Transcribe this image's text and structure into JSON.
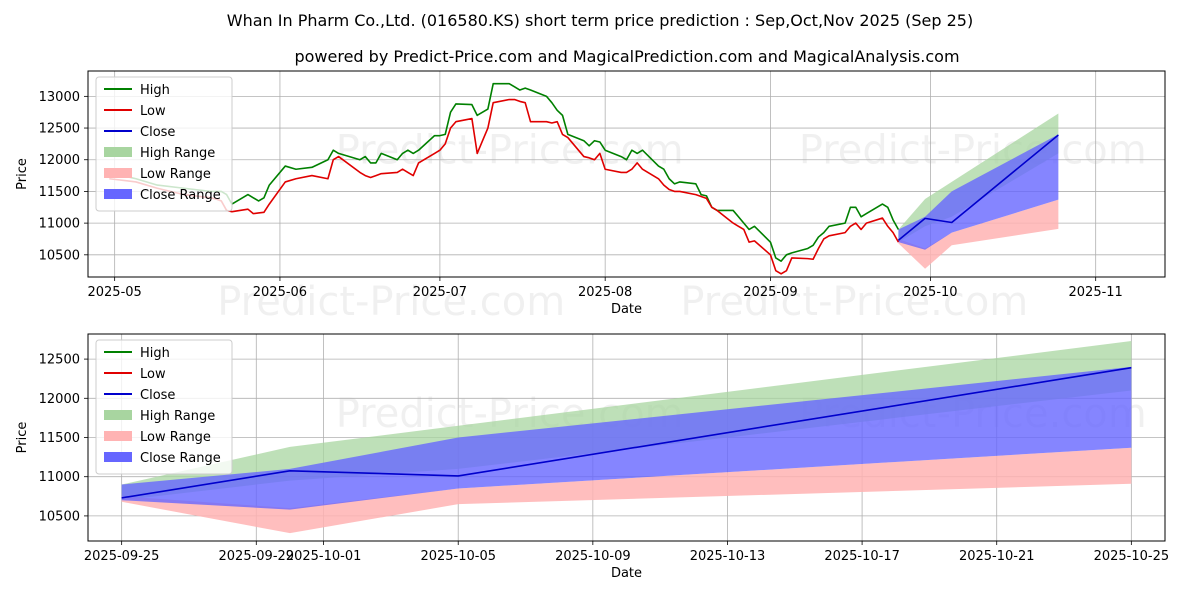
{
  "title": "Whan In Pharm Co.,Ltd. (016580.KS) short term price prediction : Sep,Oct,Nov 2025 (Sep 25)",
  "subtitle": "powered by Predict-Price.com and MagicalPrediction.com and MagicalAnalysis.com",
  "watermark": "Predict-Price.com",
  "colors": {
    "high": "#008000",
    "low": "#e00000",
    "close": "#0000cc",
    "high_range": "#a8d5a0",
    "low_range": "#ffb3b3",
    "close_range": "#6666ff",
    "grid": "#b0b0b0"
  },
  "chart_data": [
    {
      "type": "line",
      "title": "",
      "xlabel": "Date",
      "ylabel": "Price",
      "grid": true,
      "legend_position": "top-left",
      "x_axis_kind": "dates",
      "xlim": [
        "2025-04-26",
        "2025-11-14"
      ],
      "ylim": [
        10150,
        13400
      ],
      "xticks": [
        {
          "date": "2025-05-01",
          "label": "2025-05"
        },
        {
          "date": "2025-06-01",
          "label": "2025-06"
        },
        {
          "date": "2025-07-01",
          "label": "2025-07"
        },
        {
          "date": "2025-08-01",
          "label": "2025-08"
        },
        {
          "date": "2025-09-01",
          "label": "2025-09"
        },
        {
          "date": "2025-10-01",
          "label": "2025-10"
        },
        {
          "date": "2025-11-01",
          "label": "2025-11"
        }
      ],
      "yticks": [
        10500,
        11000,
        11500,
        12000,
        12500,
        13000
      ],
      "legend": [
        "High",
        "Low",
        "Close",
        "High Range",
        "Low Range",
        "Close Range"
      ],
      "series": [
        {
          "name": "High",
          "dates": [
            "2025-04-30",
            "2025-05-05",
            "2025-05-09",
            "2025-05-14",
            "2025-05-19",
            "2025-05-20",
            "2025-05-21",
            "2025-05-22",
            "2025-05-23",
            "2025-05-26",
            "2025-05-27",
            "2025-05-28",
            "2025-05-29",
            "2025-05-30",
            "2025-06-02",
            "2025-06-04",
            "2025-06-07",
            "2025-06-10",
            "2025-06-11",
            "2025-06-12",
            "2025-06-16",
            "2025-06-17",
            "2025-06-18",
            "2025-06-19",
            "2025-06-20",
            "2025-06-23",
            "2025-06-24",
            "2025-06-25",
            "2025-06-26",
            "2025-06-27",
            "2025-06-30",
            "2025-07-01",
            "2025-07-02",
            "2025-07-03",
            "2025-07-04",
            "2025-07-07",
            "2025-07-08",
            "2025-07-09",
            "2025-07-10",
            "2025-07-11",
            "2025-07-14",
            "2025-07-15",
            "2025-07-16",
            "2025-07-17",
            "2025-07-18",
            "2025-07-21",
            "2025-07-22",
            "2025-07-23",
            "2025-07-24",
            "2025-07-25",
            "2025-07-28",
            "2025-07-29",
            "2025-07-30",
            "2025-07-31",
            "2025-08-01",
            "2025-08-04",
            "2025-08-05",
            "2025-08-06",
            "2025-08-07",
            "2025-08-08",
            "2025-08-11",
            "2025-08-12",
            "2025-08-13",
            "2025-08-14",
            "2025-08-15",
            "2025-08-18",
            "2025-08-19",
            "2025-08-20",
            "2025-08-21",
            "2025-08-22",
            "2025-08-25",
            "2025-08-26",
            "2025-08-27",
            "2025-08-28",
            "2025-08-29",
            "2025-09-01",
            "2025-09-02",
            "2025-09-03",
            "2025-09-04",
            "2025-09-05",
            "2025-09-08",
            "2025-09-09",
            "2025-09-10",
            "2025-09-11",
            "2025-09-12",
            "2025-09-15",
            "2025-09-16",
            "2025-09-17",
            "2025-09-18",
            "2025-09-19",
            "2025-09-22",
            "2025-09-23",
            "2025-09-24",
            "2025-09-25"
          ],
          "values": [
            11800,
            11700,
            11600,
            11550,
            11500,
            11500,
            11500,
            11450,
            11300,
            11450,
            11400,
            11350,
            11400,
            11600,
            11900,
            11850,
            11880,
            12000,
            12150,
            12100,
            12000,
            12050,
            11950,
            11950,
            12100,
            12000,
            12100,
            12150,
            12100,
            12150,
            12380,
            12380,
            12400,
            12750,
            12880,
            12870,
            12700,
            12750,
            12800,
            13200,
            13200,
            13150,
            13100,
            13130,
            13100,
            13000,
            12900,
            12780,
            12700,
            12400,
            12300,
            12220,
            12300,
            12280,
            12150,
            12050,
            12000,
            12150,
            12100,
            12150,
            11900,
            11850,
            11700,
            11620,
            11650,
            11620,
            11450,
            11430,
            11250,
            11200,
            11200,
            11100,
            11000,
            10900,
            10950,
            10700,
            10450,
            10400,
            10500,
            10530,
            10600,
            10650,
            10780,
            10850,
            10950,
            11000,
            11250,
            11250,
            11100,
            11150,
            11300,
            11250,
            11050,
            10900
          ]
        },
        {
          "name": "Low",
          "dates": [
            "2025-04-30",
            "2025-05-05",
            "2025-05-09",
            "2025-05-14",
            "2025-05-19",
            "2025-05-20",
            "2025-05-21",
            "2025-05-22",
            "2025-05-23",
            "2025-05-26",
            "2025-05-27",
            "2025-05-28",
            "2025-05-29",
            "2025-05-30",
            "2025-06-02",
            "2025-06-04",
            "2025-06-07",
            "2025-06-10",
            "2025-06-11",
            "2025-06-12",
            "2025-06-16",
            "2025-06-17",
            "2025-06-18",
            "2025-06-19",
            "2025-06-20",
            "2025-06-23",
            "2025-06-24",
            "2025-06-25",
            "2025-06-26",
            "2025-06-27",
            "2025-06-30",
            "2025-07-01",
            "2025-07-02",
            "2025-07-03",
            "2025-07-04",
            "2025-07-07",
            "2025-07-08",
            "2025-07-09",
            "2025-07-10",
            "2025-07-11",
            "2025-07-14",
            "2025-07-15",
            "2025-07-16",
            "2025-07-17",
            "2025-07-18",
            "2025-07-21",
            "2025-07-22",
            "2025-07-23",
            "2025-07-24",
            "2025-07-25",
            "2025-07-28",
            "2025-07-29",
            "2025-07-30",
            "2025-07-31",
            "2025-08-01",
            "2025-08-04",
            "2025-08-05",
            "2025-08-06",
            "2025-08-07",
            "2025-08-08",
            "2025-08-11",
            "2025-08-12",
            "2025-08-13",
            "2025-08-14",
            "2025-08-15",
            "2025-08-18",
            "2025-08-19",
            "2025-08-20",
            "2025-08-21",
            "2025-08-22",
            "2025-08-25",
            "2025-08-26",
            "2025-08-27",
            "2025-08-28",
            "2025-08-29",
            "2025-09-01",
            "2025-09-02",
            "2025-09-03",
            "2025-09-04",
            "2025-09-05",
            "2025-09-08",
            "2025-09-09",
            "2025-09-10",
            "2025-09-11",
            "2025-09-12",
            "2025-09-15",
            "2025-09-16",
            "2025-09-17",
            "2025-09-18",
            "2025-09-19",
            "2025-09-22",
            "2025-09-23",
            "2025-09-24",
            "2025-09-25"
          ],
          "values": [
            11700,
            11650,
            11550,
            11450,
            11400,
            11380,
            11350,
            11200,
            11180,
            11220,
            11150,
            11160,
            11170,
            11300,
            11650,
            11700,
            11750,
            11700,
            12000,
            12050,
            11800,
            11750,
            11720,
            11750,
            11780,
            11800,
            11850,
            11800,
            11750,
            11950,
            12100,
            12150,
            12250,
            12500,
            12600,
            12650,
            12100,
            12300,
            12500,
            12900,
            12950,
            12950,
            12920,
            12900,
            12600,
            12600,
            12580,
            12600,
            12400,
            12350,
            12050,
            12030,
            12000,
            12100,
            11850,
            11800,
            11800,
            11850,
            11950,
            11850,
            11700,
            11600,
            11530,
            11500,
            11500,
            11450,
            11420,
            11390,
            11250,
            11200,
            11000,
            10950,
            10900,
            10700,
            10720,
            10500,
            10250,
            10200,
            10250,
            10450,
            10440,
            10430,
            10600,
            10750,
            10800,
            10850,
            10950,
            11000,
            10900,
            11000,
            11080,
            10950,
            10850,
            10700
          ]
        },
        {
          "name": "Close",
          "dates": [
            "2025-09-25",
            "2025-09-30",
            "2025-10-05",
            "2025-10-25"
          ],
          "values": [
            10730,
            11075,
            11010,
            12390
          ]
        }
      ],
      "ranges": [
        {
          "name": "High Range",
          "dates": [
            "2025-09-25",
            "2025-09-30",
            "2025-10-05",
            "2025-10-25"
          ],
          "upper": [
            10900,
            11380,
            11650,
            12730
          ],
          "lower": [
            10700,
            10950,
            11100,
            12100
          ]
        },
        {
          "name": "Low Range",
          "dates": [
            "2025-09-25",
            "2025-09-30",
            "2025-10-05",
            "2025-10-25"
          ],
          "upper": [
            10750,
            10600,
            10850,
            11370
          ],
          "lower": [
            10680,
            10280,
            10650,
            10910
          ]
        },
        {
          "name": "Close Range",
          "dates": [
            "2025-09-25",
            "2025-09-30",
            "2025-10-05",
            "2025-10-25"
          ],
          "upper": [
            10900,
            11100,
            11500,
            12400
          ],
          "lower": [
            10700,
            10580,
            10850,
            11370
          ]
        }
      ]
    },
    {
      "type": "line",
      "title": "",
      "xlabel": "Date",
      "ylabel": "Price",
      "grid": true,
      "legend_position": "top-left",
      "x_axis_kind": "dates",
      "xlim": [
        "2025-09-24",
        "2025-10-26"
      ],
      "ylim": [
        10180,
        12820
      ],
      "xticks": [
        {
          "date": "2025-09-25",
          "label": "2025-09-25"
        },
        {
          "date": "2025-09-29",
          "label": "2025-09-29"
        },
        {
          "date": "2025-10-01",
          "label": "2025-10-01"
        },
        {
          "date": "2025-10-05",
          "label": "2025-10-05"
        },
        {
          "date": "2025-10-09",
          "label": "2025-10-09"
        },
        {
          "date": "2025-10-13",
          "label": "2025-10-13"
        },
        {
          "date": "2025-10-17",
          "label": "2025-10-17"
        },
        {
          "date": "2025-10-21",
          "label": "2025-10-21"
        },
        {
          "date": "2025-10-25",
          "label": "2025-10-25"
        }
      ],
      "yticks": [
        10500,
        11000,
        11500,
        12000,
        12500
      ],
      "legend": [
        "High",
        "Low",
        "Close",
        "High Range",
        "Low Range",
        "Close Range"
      ],
      "series": [
        {
          "name": "High",
          "dates": [],
          "values": []
        },
        {
          "name": "Low",
          "dates": [],
          "values": []
        },
        {
          "name": "Close",
          "dates": [
            "2025-09-25",
            "2025-09-30",
            "2025-10-05",
            "2025-10-25"
          ],
          "values": [
            10730,
            11075,
            11010,
            12390
          ]
        }
      ],
      "ranges": [
        {
          "name": "High Range",
          "dates": [
            "2025-09-25",
            "2025-09-30",
            "2025-10-05",
            "2025-10-25"
          ],
          "upper": [
            10900,
            11380,
            11650,
            12730
          ],
          "lower": [
            10700,
            10950,
            11100,
            12100
          ]
        },
        {
          "name": "Low Range",
          "dates": [
            "2025-09-25",
            "2025-09-30",
            "2025-10-05",
            "2025-10-25"
          ],
          "upper": [
            10750,
            10600,
            10850,
            11370
          ],
          "lower": [
            10680,
            10280,
            10650,
            10910
          ]
        },
        {
          "name": "Close Range",
          "dates": [
            "2025-09-25",
            "2025-09-30",
            "2025-10-05",
            "2025-10-25"
          ],
          "upper": [
            10900,
            11100,
            11500,
            12400
          ],
          "lower": [
            10700,
            10580,
            10850,
            11370
          ]
        }
      ]
    }
  ]
}
